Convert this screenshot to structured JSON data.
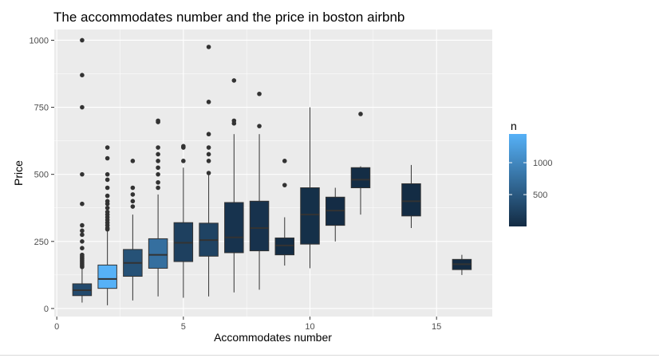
{
  "chart_data": {
    "type": "boxplot",
    "title": "The accommodates number and the price in boston airbnb",
    "xlabel": "Accommodates number",
    "ylabel": "Price",
    "xlim": [
      -0.1,
      17.2
    ],
    "ylim": [
      -30,
      1040
    ],
    "xticks": [
      0,
      5,
      10,
      15
    ],
    "yticks": [
      0,
      250,
      500,
      750,
      1000
    ],
    "background": "#ebebeb",
    "grid": true,
    "legend": {
      "title": "n",
      "position": "right",
      "low_color": "#132b43",
      "high_color": "#56b1f7",
      "min": 1,
      "max": 1450,
      "ticks": [
        500,
        1000
      ]
    },
    "boxes": [
      {
        "x": 1,
        "n": 340,
        "whisker_low": 22,
        "q1": 48,
        "median": 68,
        "q3": 92,
        "whisker_high": 150,
        "outliers": [
          155,
          160,
          165,
          170,
          175,
          180,
          185,
          190,
          195,
          200,
          225,
          250,
          275,
          290,
          310,
          390,
          500,
          750,
          870,
          1000
        ]
      },
      {
        "x": 2,
        "n": 1450,
        "whisker_low": 12,
        "q1": 75,
        "median": 110,
        "q3": 162,
        "whisker_high": 290,
        "outliers": [
          295,
          300,
          310,
          320,
          330,
          340,
          350,
          360,
          375,
          390,
          400,
          420,
          450,
          480,
          500,
          560,
          600
        ]
      },
      {
        "x": 3,
        "n": 420,
        "whisker_low": 30,
        "q1": 120,
        "median": 170,
        "q3": 220,
        "whisker_high": 350,
        "outliers": [
          380,
          400,
          425,
          450,
          550
        ]
      },
      {
        "x": 4,
        "n": 740,
        "whisker_low": 45,
        "q1": 150,
        "median": 200,
        "q3": 260,
        "whisker_high": 425,
        "outliers": [
          450,
          470,
          500,
          525,
          550,
          575,
          600,
          695,
          700
        ]
      },
      {
        "x": 5,
        "n": 230,
        "whisker_low": 40,
        "q1": 175,
        "median": 245,
        "q3": 320,
        "whisker_high": 525,
        "outliers": [
          550,
          600,
          605
        ]
      },
      {
        "x": 6,
        "n": 260,
        "whisker_low": 45,
        "q1": 195,
        "median": 255,
        "q3": 318,
        "whisker_high": 500,
        "outliers": [
          505,
          550,
          575,
          600,
          650,
          770,
          975
        ]
      },
      {
        "x": 7,
        "n": 90,
        "whisker_low": 60,
        "q1": 208,
        "median": 265,
        "q3": 395,
        "whisker_high": 650,
        "outliers": [
          690,
          700,
          850
        ]
      },
      {
        "x": 8,
        "n": 80,
        "whisker_low": 70,
        "q1": 215,
        "median": 300,
        "q3": 400,
        "whisker_high": 650,
        "outliers": [
          680,
          800
        ]
      },
      {
        "x": 9,
        "n": 20,
        "whisker_low": 160,
        "q1": 200,
        "median": 235,
        "q3": 263,
        "whisker_high": 340,
        "outliers": [
          460,
          550
        ]
      },
      {
        "x": 10,
        "n": 50,
        "whisker_low": 150,
        "q1": 240,
        "median": 350,
        "q3": 450,
        "whisker_high": 750,
        "outliers": []
      },
      {
        "x": 11,
        "n": 15,
        "whisker_low": 250,
        "q1": 310,
        "median": 365,
        "q3": 415,
        "whisker_high": 450,
        "outliers": []
      },
      {
        "x": 12,
        "n": 20,
        "whisker_low": 350,
        "q1": 450,
        "median": 480,
        "q3": 525,
        "whisker_high": 530,
        "outliers": [
          725
        ]
      },
      {
        "x": 14,
        "n": 10,
        "whisker_low": 300,
        "q1": 345,
        "median": 400,
        "q3": 465,
        "whisker_high": 535,
        "outliers": []
      },
      {
        "x": 16,
        "n": 5,
        "whisker_low": 125,
        "q1": 145,
        "median": 165,
        "q3": 183,
        "whisker_high": 200,
        "outliers": []
      }
    ]
  }
}
